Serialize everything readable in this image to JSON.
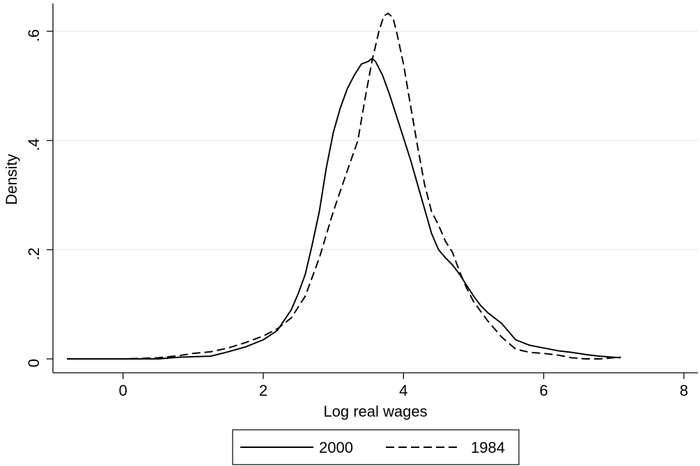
{
  "chart_data": {
    "type": "line",
    "xlabel": "Log real wages",
    "ylabel": "Density",
    "xlim": [
      -1,
      8.2
    ],
    "ylim": [
      0,
      0.65
    ],
    "x_ticks": [
      0,
      2,
      4,
      6,
      8
    ],
    "x_tick_labels": [
      "0",
      "2",
      "4",
      "6",
      "8"
    ],
    "y_ticks": [
      0,
      0.2,
      0.4,
      0.6
    ],
    "y_tick_labels": [
      "0",
      ".2",
      ".4",
      ".6"
    ],
    "grid": "horizontal",
    "legend_position": "bottom",
    "colors": {
      "line": "#000000",
      "grid": "#e6eef1",
      "axis": "#000000",
      "background": "#ffffff"
    },
    "series": [
      {
        "name": "2000",
        "style": "solid",
        "points": [
          [
            -0.8,
            0.0
          ],
          [
            0.0,
            0.0
          ],
          [
            0.5,
            0.0
          ],
          [
            0.8,
            0.003
          ],
          [
            1.0,
            0.004
          ],
          [
            1.25,
            0.005
          ],
          [
            1.5,
            0.013
          ],
          [
            1.75,
            0.022
          ],
          [
            2.0,
            0.035
          ],
          [
            2.2,
            0.052
          ],
          [
            2.4,
            0.09
          ],
          [
            2.5,
            0.12
          ],
          [
            2.6,
            0.155
          ],
          [
            2.7,
            0.21
          ],
          [
            2.8,
            0.27
          ],
          [
            2.9,
            0.35
          ],
          [
            3.0,
            0.415
          ],
          [
            3.1,
            0.46
          ],
          [
            3.2,
            0.495
          ],
          [
            3.3,
            0.52
          ],
          [
            3.4,
            0.54
          ],
          [
            3.5,
            0.545
          ],
          [
            3.55,
            0.55
          ],
          [
            3.6,
            0.545
          ],
          [
            3.7,
            0.52
          ],
          [
            3.8,
            0.485
          ],
          [
            3.9,
            0.445
          ],
          [
            4.0,
            0.405
          ],
          [
            4.1,
            0.365
          ],
          [
            4.2,
            0.32
          ],
          [
            4.3,
            0.275
          ],
          [
            4.4,
            0.23
          ],
          [
            4.5,
            0.2
          ],
          [
            4.6,
            0.185
          ],
          [
            4.7,
            0.172
          ],
          [
            4.8,
            0.155
          ],
          [
            4.9,
            0.135
          ],
          [
            5.0,
            0.115
          ],
          [
            5.1,
            0.098
          ],
          [
            5.2,
            0.085
          ],
          [
            5.4,
            0.065
          ],
          [
            5.6,
            0.035
          ],
          [
            5.8,
            0.025
          ],
          [
            6.0,
            0.02
          ],
          [
            6.2,
            0.015
          ],
          [
            6.4,
            0.012
          ],
          [
            6.6,
            0.008
          ],
          [
            6.8,
            0.005
          ],
          [
            7.0,
            0.003
          ],
          [
            7.1,
            0.002
          ]
        ]
      },
      {
        "name": "1984",
        "style": "dashed",
        "points": [
          [
            -0.8,
            0.0
          ],
          [
            0.0,
            0.0
          ],
          [
            0.5,
            0.002
          ],
          [
            0.8,
            0.006
          ],
          [
            1.0,
            0.01
          ],
          [
            1.25,
            0.013
          ],
          [
            1.5,
            0.02
          ],
          [
            1.75,
            0.03
          ],
          [
            2.0,
            0.042
          ],
          [
            2.2,
            0.055
          ],
          [
            2.4,
            0.075
          ],
          [
            2.6,
            0.115
          ],
          [
            2.8,
            0.185
          ],
          [
            3.0,
            0.27
          ],
          [
            3.2,
            0.345
          ],
          [
            3.35,
            0.4
          ],
          [
            3.45,
            0.475
          ],
          [
            3.55,
            0.545
          ],
          [
            3.65,
            0.6
          ],
          [
            3.72,
            0.628
          ],
          [
            3.78,
            0.633
          ],
          [
            3.85,
            0.625
          ],
          [
            3.9,
            0.6
          ],
          [
            4.0,
            0.54
          ],
          [
            4.1,
            0.465
          ],
          [
            4.2,
            0.39
          ],
          [
            4.3,
            0.32
          ],
          [
            4.4,
            0.27
          ],
          [
            4.5,
            0.245
          ],
          [
            4.6,
            0.215
          ],
          [
            4.7,
            0.195
          ],
          [
            4.8,
            0.16
          ],
          [
            4.9,
            0.13
          ],
          [
            5.0,
            0.105
          ],
          [
            5.2,
            0.07
          ],
          [
            5.4,
            0.04
          ],
          [
            5.6,
            0.018
          ],
          [
            5.8,
            0.012
          ],
          [
            6.0,
            0.01
          ],
          [
            6.2,
            0.007
          ],
          [
            6.4,
            0.002
          ],
          [
            6.6,
            0.0
          ],
          [
            6.8,
            0.0
          ],
          [
            7.0,
            0.002
          ],
          [
            7.1,
            0.003
          ]
        ]
      }
    ]
  }
}
